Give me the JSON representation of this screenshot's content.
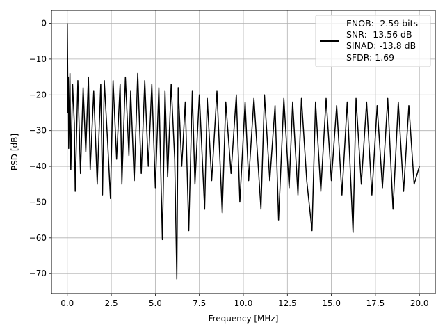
{
  "chart_data": {
    "type": "line",
    "title": "",
    "xlabel": "Frequency [MHz]",
    "ylabel": "PSD [dB]",
    "xlim": [
      -0.9,
      20.9
    ],
    "ylim": [
      -75.6,
      3.6
    ],
    "xticks": [
      0.0,
      2.5,
      5.0,
      7.5,
      10.0,
      12.5,
      15.0,
      17.5,
      20.0
    ],
    "xtick_labels": [
      "0.0",
      "2.5",
      "5.0",
      "7.5",
      "10.0",
      "12.5",
      "15.0",
      "17.5",
      "20.0"
    ],
    "yticks": [
      0,
      -10,
      -20,
      -30,
      -40,
      -50,
      -60,
      -70
    ],
    "ytick_labels": [
      "0",
      "−10",
      "−20",
      "−30",
      "−40",
      "−50",
      "−60",
      "−70"
    ],
    "grid": true,
    "legend_position": "top-right",
    "legend_lines": [
      "ENOB: -2.59 bits",
      "SNR: -13.56 dB",
      "SINAD: -13.8 dB",
      "SFDR: 1.69"
    ],
    "series": [
      {
        "color": "#000000",
        "x": [
          0.0,
          0.02,
          0.04,
          0.06,
          0.08,
          0.1,
          0.15,
          0.2,
          0.3,
          0.4,
          0.45,
          0.6,
          0.75,
          0.9,
          1.05,
          1.2,
          1.3,
          1.5,
          1.7,
          1.9,
          2.0,
          2.1,
          2.3,
          2.45,
          2.6,
          2.8,
          3.0,
          3.1,
          3.3,
          3.5,
          3.6,
          3.8,
          4.0,
          4.2,
          4.4,
          4.6,
          4.8,
          5.0,
          5.2,
          5.4,
          5.55,
          5.7,
          5.9,
          6.1,
          6.22,
          6.3,
          6.5,
          6.7,
          6.9,
          7.1,
          7.25,
          7.5,
          7.8,
          7.95,
          8.2,
          8.5,
          8.8,
          9.0,
          9.3,
          9.6,
          9.8,
          10.1,
          10.3,
          10.6,
          11.0,
          11.2,
          11.5,
          11.8,
          12.0,
          12.3,
          12.6,
          12.8,
          13.1,
          13.3,
          13.6,
          13.9,
          14.1,
          14.4,
          14.7,
          15.0,
          15.3,
          15.6,
          15.9,
          16.23,
          16.4,
          16.7,
          17.0,
          17.3,
          17.6,
          17.9,
          18.2,
          18.5,
          18.8,
          19.1,
          19.4,
          19.7,
          20.0
        ],
        "y": [
          0,
          -12,
          -25,
          -15,
          -35,
          -30,
          -14,
          -41,
          -17,
          -28,
          -47,
          -16,
          -42,
          -18,
          -36,
          -15,
          -41,
          -19,
          -45,
          -17,
          -48,
          -16,
          -34,
          -49,
          -16,
          -38,
          -17,
          -45,
          -15,
          -37,
          -19,
          -44,
          -14,
          -42,
          -16,
          -40,
          -17,
          -46,
          -18,
          -60.5,
          -19,
          -43,
          -17,
          -38,
          -71.5,
          -18,
          -40,
          -22,
          -58,
          -19,
          -45,
          -20,
          -52,
          -21,
          -44,
          -19,
          -53,
          -22,
          -42,
          -20,
          -50,
          -22,
          -44,
          -21,
          -52,
          -20,
          -44,
          -23,
          -55,
          -21,
          -46,
          -22,
          -48,
          -21,
          -44,
          -58,
          -22,
          -47,
          -21,
          -44,
          -23,
          -48,
          -22,
          -58.5,
          -21,
          -45,
          -22,
          -48,
          -23,
          -46,
          -21,
          -52,
          -22,
          -47,
          -23,
          -45,
          -40
        ]
      }
    ]
  }
}
